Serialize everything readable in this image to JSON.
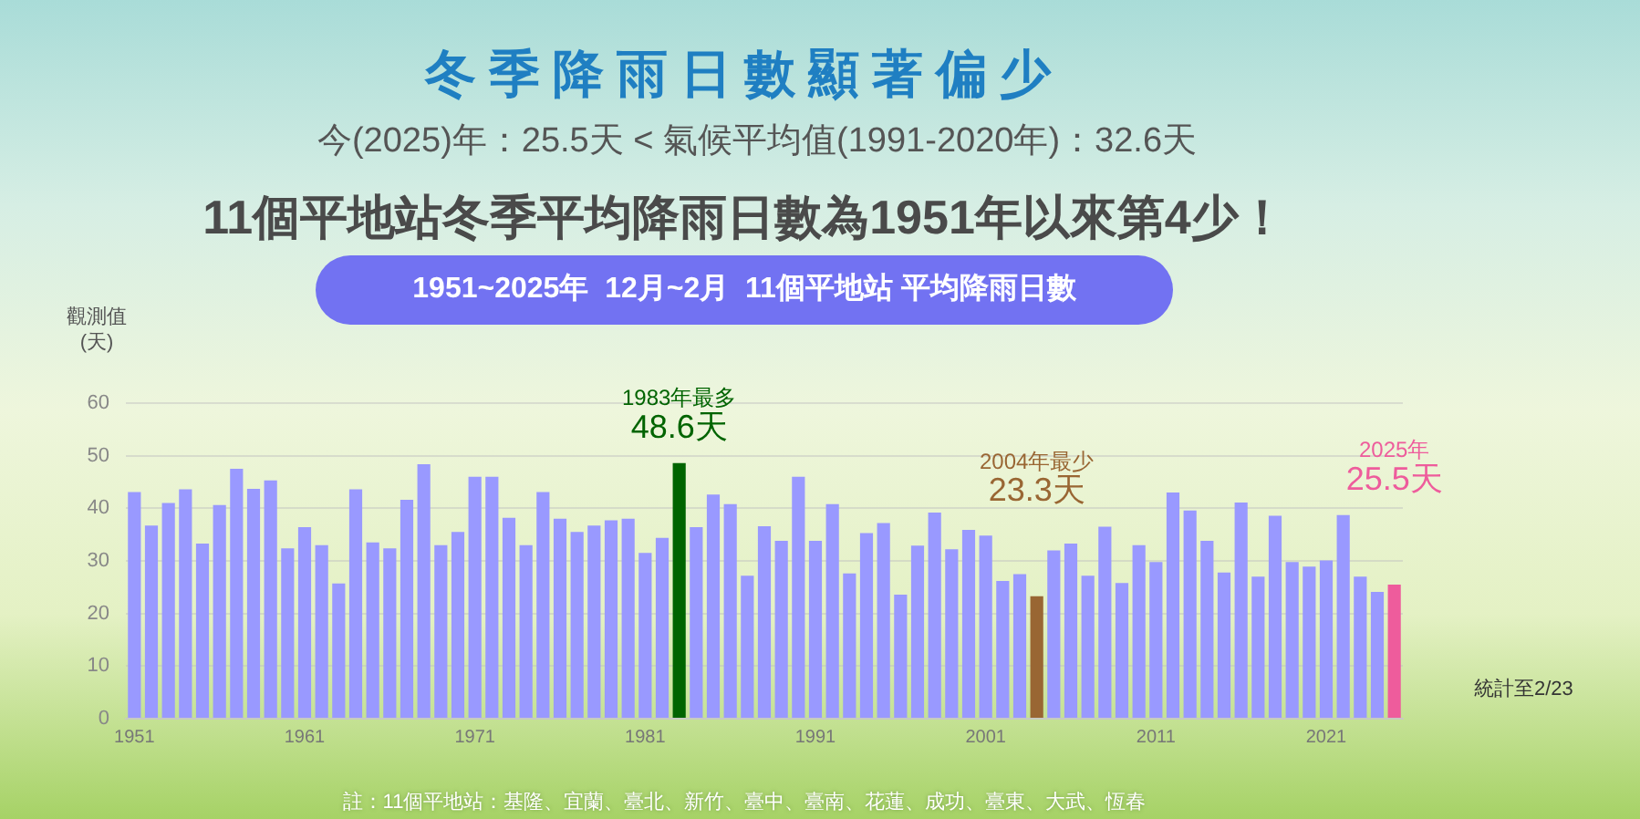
{
  "chart_data": {
    "type": "bar",
    "title": "冬季降雨日數顯著偏少",
    "subtitle": "今(2025)年：25.5天 < 氣候平均值(1991-2020年)：32.6天",
    "ylabel": "觀測值(天)",
    "annotations": [
      "11個平地站冬季平均降雨日數為1951年以來第4少！",
      "1951~2025年  12月~2月  11個平地站 平均降雨日數",
      "統計至2/23",
      "註：11個平地站：基隆、宜蘭、臺北、新竹、臺中、臺南、花蓮、成功、臺東、大武、恆春"
    ],
    "categories": [
      "1951",
      null,
      null,
      null,
      null,
      null,
      null,
      null,
      null,
      null,
      "1961",
      null,
      null,
      null,
      null,
      null,
      null,
      null,
      null,
      null,
      "1971",
      null,
      null,
      null,
      null,
      null,
      null,
      null,
      null,
      null,
      "1981",
      null,
      null,
      null,
      null,
      null,
      null,
      null,
      null,
      null,
      "1991",
      null,
      null,
      null,
      null,
      null,
      null,
      null,
      null,
      null,
      "2001",
      null,
      null,
      null,
      null,
      null,
      null,
      null,
      null,
      null,
      "2011",
      null,
      null,
      null,
      null,
      null,
      null,
      null,
      null,
      null,
      "2021",
      null,
      null,
      null,
      null
    ],
    "values": [
      43.1,
      36.7,
      41.0,
      43.6,
      33.3,
      40.6,
      47.5,
      43.7,
      45.3,
      32.4,
      36.4,
      33.0,
      25.7,
      43.6,
      33.5,
      32.4,
      41.6,
      48.4,
      33.0,
      35.5,
      46.0,
      46.0,
      38.2,
      33.0,
      43.1,
      38.0,
      35.5,
      36.7,
      37.7,
      38.0,
      31.5,
      34.4,
      48.6,
      36.4,
      42.6,
      40.8,
      27.2,
      36.6,
      33.8,
      46.0,
      33.8,
      40.8,
      27.6,
      35.3,
      37.2,
      23.6,
      32.9,
      39.2,
      32.2,
      35.9,
      34.8,
      26.2,
      27.5,
      23.3,
      32.0,
      33.3,
      27.2,
      36.5,
      25.8,
      33.0,
      29.8,
      43.0,
      39.6,
      33.8,
      27.8,
      41.1,
      27.0,
      38.6,
      29.8,
      28.9,
      30.1,
      38.7,
      27.0,
      24.1,
      25.5
    ],
    "colors": [
      "#9999ff",
      "#9999ff",
      "#9999ff",
      "#9999ff",
      "#9999ff",
      "#9999ff",
      "#9999ff",
      "#9999ff",
      "#9999ff",
      "#9999ff",
      "#9999ff",
      "#9999ff",
      "#9999ff",
      "#9999ff",
      "#9999ff",
      "#9999ff",
      "#9999ff",
      "#9999ff",
      "#9999ff",
      "#9999ff",
      "#9999ff",
      "#9999ff",
      "#9999ff",
      "#9999ff",
      "#9999ff",
      "#9999ff",
      "#9999ff",
      "#9999ff",
      "#9999ff",
      "#9999ff",
      "#9999ff",
      "#9999ff",
      "#006400",
      "#9999ff",
      "#9999ff",
      "#9999ff",
      "#9999ff",
      "#9999ff",
      "#9999ff",
      "#9999ff",
      "#9999ff",
      "#9999ff",
      "#9999ff",
      "#9999ff",
      "#9999ff",
      "#9999ff",
      "#9999ff",
      "#9999ff",
      "#9999ff",
      "#9999ff",
      "#9999ff",
      "#9999ff",
      "#9999ff",
      "#996633",
      "#9999ff",
      "#9999ff",
      "#9999ff",
      "#9999ff",
      "#9999ff",
      "#9999ff",
      "#9999ff",
      "#9999ff",
      "#9999ff",
      "#9999ff",
      "#9999ff",
      "#9999ff",
      "#9999ff",
      "#9999ff",
      "#9999ff",
      "#9999ff",
      "#9999ff",
      "#9999ff",
      "#9999ff",
      "#9999ff",
      "#ee5c9c"
    ],
    "value_labels": [
      null,
      null,
      null,
      null,
      null,
      null,
      null,
      null,
      null,
      null,
      null,
      null,
      null,
      null,
      null,
      null,
      null,
      null,
      null,
      null,
      null,
      null,
      null,
      null,
      null,
      null,
      null,
      null,
      null,
      null,
      null,
      null,
      "1983年最多\n48.6天",
      null,
      null,
      null,
      null,
      null,
      null,
      null,
      null,
      null,
      null,
      null,
      null,
      null,
      null,
      null,
      null,
      null,
      null,
      null,
      null,
      "2004年最少\n23.3天",
      null,
      null,
      null,
      null,
      null,
      null,
      null,
      null,
      null,
      null,
      null,
      null,
      null,
      null,
      null,
      null,
      null,
      null,
      null,
      null,
      "2025年\n25.5天"
    ],
    "ylim": [
      0,
      60
    ],
    "yticks": [
      0,
      10,
      20,
      30,
      40,
      50,
      60
    ],
    "grid": "y",
    "legend": false
  }
}
